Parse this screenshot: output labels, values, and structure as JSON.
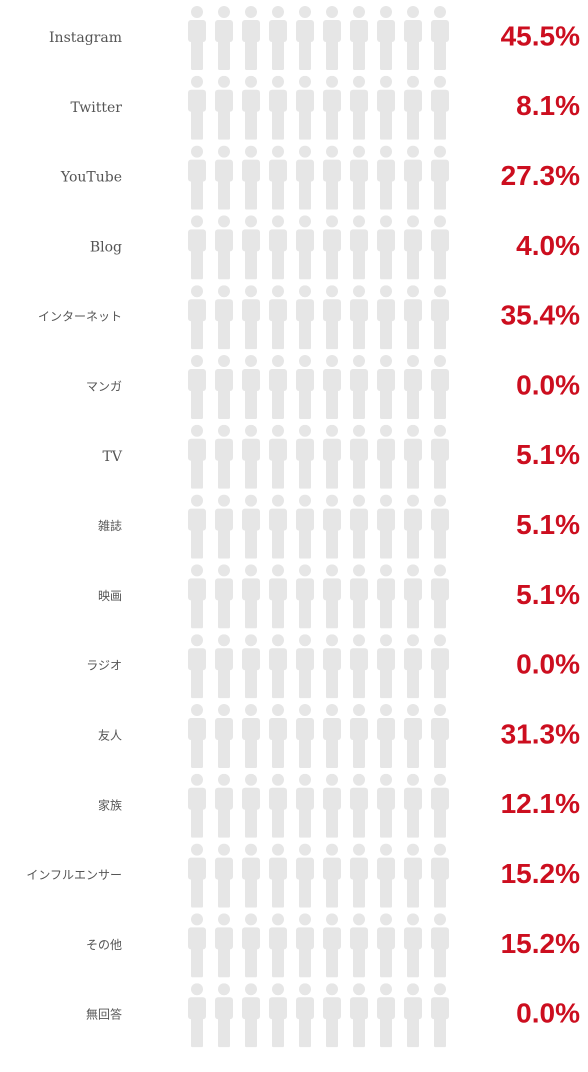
{
  "colors": {
    "accent": "#cc0e1f",
    "inactive": "#e6e6e6",
    "label": "#555555"
  },
  "icon": "person-icon",
  "chart_data": {
    "type": "pictograph",
    "icons_per_row": 10,
    "value_suffix": "%",
    "categories": [
      "Instagram",
      "Twitter",
      "YouTube",
      "Blog",
      "インターネット",
      "マンガ",
      "TV",
      "雑誌",
      "映画",
      "ラジオ",
      "友人",
      "家族",
      "インフルエンサー",
      "その他",
      "無回答"
    ],
    "values": [
      45.5,
      8.1,
      27.3,
      4.0,
      35.4,
      0.0,
      5.1,
      5.1,
      5.1,
      0.0,
      31.3,
      12.1,
      15.2,
      15.2,
      0.0
    ],
    "value_labels": [
      "45.5%",
      "8.1%",
      "27.3%",
      "4.0%",
      "35.4%",
      "0.0%",
      "5.1%",
      "5.1%",
      "5.1%",
      "0.0%",
      "31.3%",
      "12.1%",
      "15.2%",
      "15.2%",
      "0.0%"
    ]
  }
}
